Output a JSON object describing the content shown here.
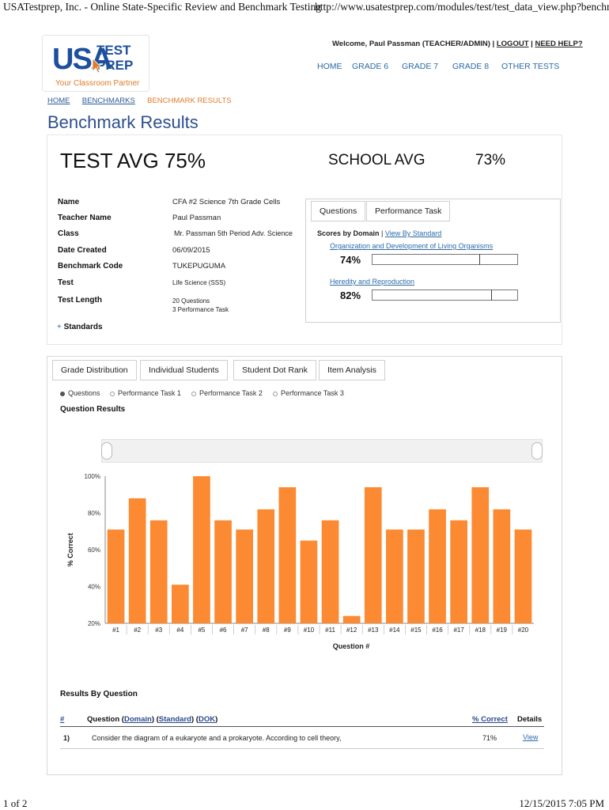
{
  "print": {
    "title": "USATestprep, Inc. - Online State-Specific Review and Benchmark Testing",
    "url": "http://www.usatestprep.com/modules/test/test_data_view.php?benchmark...",
    "page": "1 of 2",
    "datetime": "12/15/2015 7:05 PM"
  },
  "logo": {
    "usa": "USA",
    "test": "TEST",
    "prep": "PREP",
    "tagline": "Your Classroom Partner"
  },
  "header": {
    "welcome": "Welcome, Paul Passman (TEACHER/ADMIN)",
    "sep": "|",
    "logout": "LOGOUT",
    "help": "NEED HELP?",
    "nav": [
      "HOME",
      "GRADE 6",
      "GRADE 7",
      "GRADE 8",
      "OTHER TESTS"
    ]
  },
  "breadcrumb": [
    "HOME",
    "BENCHMARKS",
    "BENCHMARK RESULTS"
  ],
  "page_title": "Benchmark Results",
  "summary": {
    "test_avg": "TEST AVG 75%",
    "school_avg_label": "SCHOOL AVG",
    "school_avg_value": "73%",
    "fields": [
      {
        "label": "Name",
        "value": "CFA #2 Science 7th Grade Cells"
      },
      {
        "label": "Teacher Name",
        "value": "Paul Passman"
      },
      {
        "label": "Class",
        "value": "Mr. Passman 5th Period Adv. Science"
      },
      {
        "label": "Date Created",
        "value": "06/09/2015"
      },
      {
        "label": "Benchmark Code",
        "value": "TUKEPUGUMA"
      },
      {
        "label": "Test",
        "value": "Life Science (SSS)"
      },
      {
        "label": "Test Length",
        "value": "20 Questions",
        "value2": "3 Performance Task"
      }
    ],
    "standards": "Standards",
    "plus": "+"
  },
  "domain_panel": {
    "tabs": [
      "Questions",
      "Performance Task"
    ],
    "scores_label": "Scores by Domain",
    "sep": "|",
    "view_by": "View By Standard",
    "domains": [
      {
        "name": "Organization and Development of Living Organisms",
        "pct_label": "74%",
        "pct": 74
      },
      {
        "name": "Heredity and Reproduction",
        "pct_label": "82%",
        "pct": 82
      }
    ]
  },
  "results": {
    "tabs": [
      "Grade Distribution",
      "Individual Students",
      "Student Dot Rank",
      "Item Analysis"
    ],
    "radios": [
      {
        "label": "Questions",
        "selected": true
      },
      {
        "label": "Performance Task 1",
        "selected": false
      },
      {
        "label": "Performance Task 2",
        "selected": false
      },
      {
        "label": "Performance Task 3",
        "selected": false
      }
    ],
    "question_results": "Question Results",
    "results_by_question": "Results By Question",
    "table": {
      "headers": {
        "num": "#",
        "question": "Question",
        "domain": "Domain",
        "standard": "Standard",
        "dok": "DOK",
        "correct": "% Correct",
        "details": "Details"
      },
      "rows": [
        {
          "num": "1)",
          "question": "Consider the diagram of a eukaryote and a prokaryote. According to cell theory,",
          "correct": "71%",
          "details": "View"
        }
      ]
    }
  },
  "colors": {
    "bar": "#fb8a33",
    "accent": "#2c4f8d",
    "link": "#2a6aa8",
    "orange": "#e07b2a"
  },
  "chart_data": {
    "type": "bar",
    "categories": [
      "#1",
      "#2",
      "#3",
      "#4",
      "#5",
      "#6",
      "#7",
      "#8",
      "#9",
      "#10",
      "#11",
      "#12",
      "#13",
      "#14",
      "#15",
      "#16",
      "#17",
      "#18",
      "#19",
      "#20"
    ],
    "values": [
      71,
      88,
      76,
      41,
      100,
      76,
      71,
      82,
      94,
      65,
      76,
      24,
      94,
      71,
      71,
      82,
      76,
      94,
      82,
      71
    ],
    "ylabel": "% Correct",
    "xlabel": "Question #",
    "yticks": [
      "100%",
      "80%",
      "60%",
      "40%",
      "20%"
    ],
    "ylim": [
      20,
      100
    ],
    "grid": false
  }
}
